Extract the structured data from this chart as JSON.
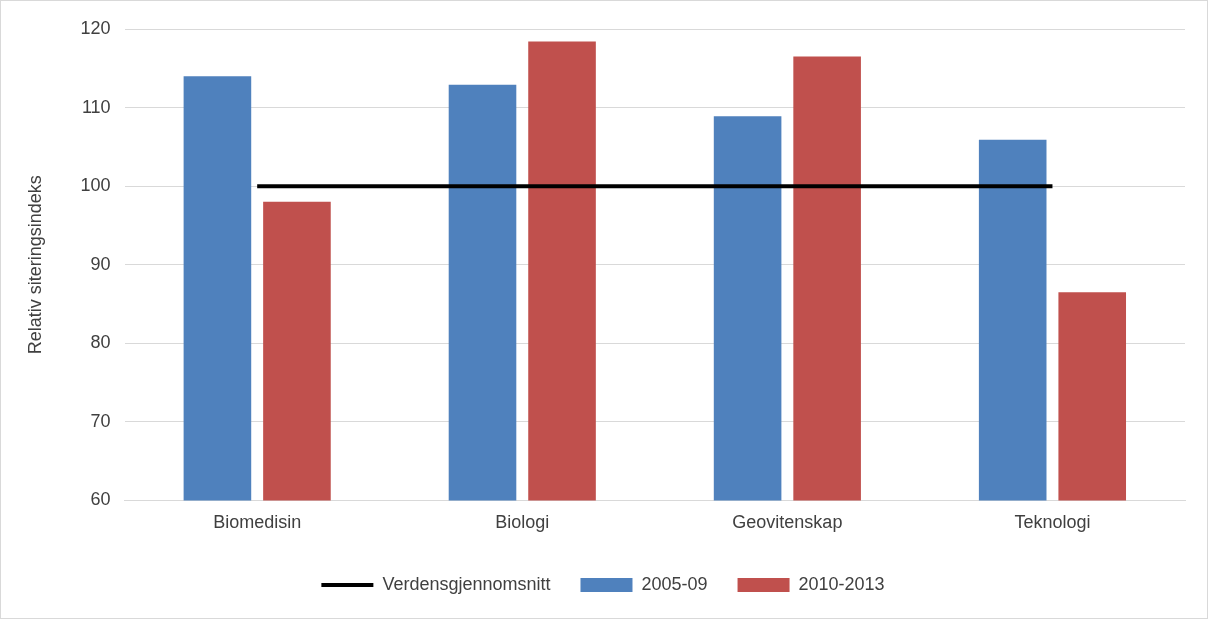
{
  "chart_data": {
    "type": "bar",
    "ylabel": "Relativ siteringsindeks",
    "categories": [
      "Biomedisin",
      "Biologi",
      "Geovitenskap",
      "Teknologi"
    ],
    "series": [
      {
        "name": "2005-09",
        "color": "#4f81bd",
        "values": [
          114,
          112.9,
          108.9,
          105.9
        ]
      },
      {
        "name": "2010-2013",
        "color": "#c0504d",
        "values": [
          98,
          118.4,
          116.5,
          86.5
        ]
      },
      {
        "name": "Verdensgjennomsnitt",
        "type": "line",
        "color": "#000000",
        "values": [
          100,
          100,
          100,
          100
        ]
      }
    ],
    "ylim": [
      60,
      120
    ],
    "yticks": [
      60,
      70,
      80,
      90,
      100,
      110,
      120
    ],
    "grid": "y",
    "legend": "bottom"
  }
}
